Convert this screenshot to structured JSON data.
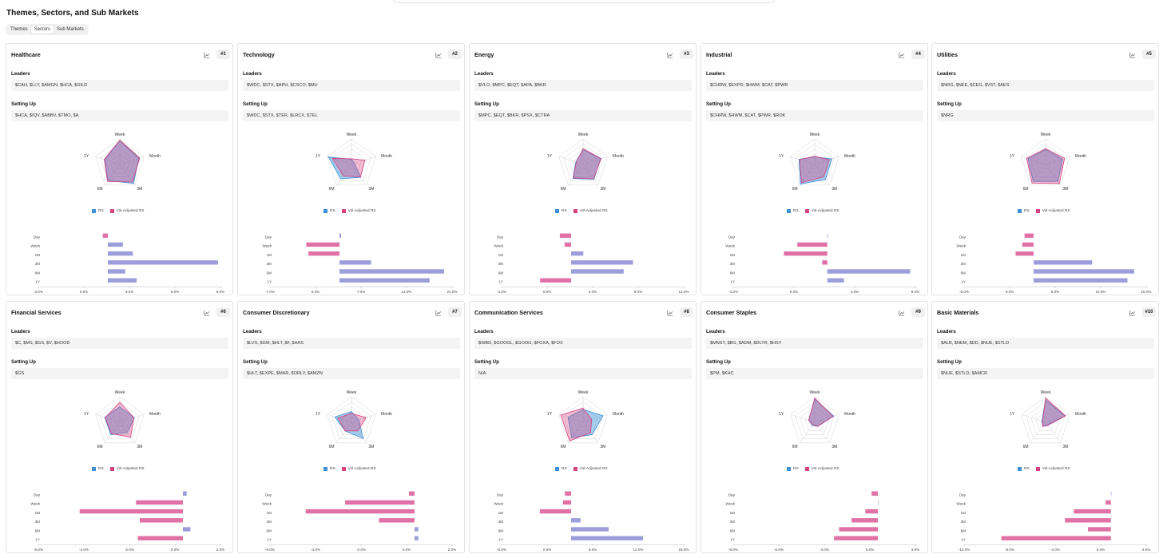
{
  "page": {
    "title": "Themes, Sectors, and Sub Markets"
  },
  "tabs": [
    {
      "label": "Themes",
      "active": false
    },
    {
      "label": "Sectors",
      "active": true
    },
    {
      "label": "Sub Markets",
      "active": false
    }
  ],
  "labels": {
    "leaders": "Leaders",
    "setting_up": "Setting Up"
  },
  "legend": {
    "rs": "RS",
    "vol_rs": "Vol-Adjusted RS"
  },
  "colors": {
    "rs": "#3a8fd6",
    "vol_rs": "#d6407f",
    "bar_pos": "#9d9ddb",
    "bar_neg": "#e071a6"
  },
  "radar_axes": [
    "Week",
    "Month",
    "3M",
    "6M",
    "1Y"
  ],
  "bar_categories": [
    "Day",
    "Week",
    "1M",
    "3M",
    "6M",
    "1Y"
  ],
  "sectors": [
    {
      "name": "Healthcare",
      "rank": "#1",
      "leaders": "$CAH, $LLY, $AMGN, $HCA, $GILD",
      "setting_up": "$HCA, $IQV, $ABBV, $TMO, $A",
      "radar": {
        "rs": [
          0.93,
          0.78,
          0.92,
          0.78,
          0.62
        ],
        "vol": [
          0.95,
          0.82,
          0.85,
          0.82,
          0.64
        ]
      },
      "bars": {
        "values": [
          -0.4,
          1.2,
          2.0,
          8.8,
          1.4,
          2.3
        ],
        "ticks": [
          "-3.0%",
          "0.0%",
          "3.0%",
          "6.0%",
          "9.0%"
        ],
        "xlim": [
          -3,
          9
        ]
      }
    },
    {
      "name": "Technology",
      "rank": "#2",
      "leaders": "$WDC, $STX, $APH, $CSCO, $MU",
      "setting_up": "$WDC, $STX, $TER, $LRCX, $TEL",
      "radar": {
        "rs": [
          0.2,
          0.12,
          0.62,
          0.7,
          0.95
        ],
        "vol": [
          0.22,
          0.55,
          0.6,
          0.55,
          0.78
        ]
      },
      "bars": {
        "values": [
          0.3,
          -6.2,
          -5.8,
          5.9,
          19.5,
          16.8
        ],
        "ticks": [
          "-7.0%",
          "0.0%",
          "7.0%",
          "14.0%",
          "21.0%"
        ],
        "xlim": [
          -7,
          21
        ]
      }
    },
    {
      "name": "Energy",
      "rank": "#3",
      "leaders": "$VLO, $MPC, $EQT, $APA, $BKR",
      "setting_up": "$MPC, $EQT, $BKR, $PSX, $CTRA",
      "radar": {
        "rs": [
          0.58,
          0.72,
          0.72,
          0.68,
          0.3
        ],
        "vol": [
          0.62,
          0.74,
          0.7,
          0.65,
          0.28
        ]
      },
      "bars": {
        "values": [
          -1.2,
          -0.7,
          1.3,
          6.6,
          5.6,
          -3.3
        ],
        "ticks": [
          "-4.0%",
          "0.0%",
          "4.0%",
          "8.0%",
          "12.0%"
        ],
        "xlim": [
          -4,
          12
        ]
      }
    },
    {
      "name": "Industrial",
      "rank": "#4",
      "leaders": "$CHRW, $EXPD, $HWM, $CAT, $PWR",
      "setting_up": "$CHRW, $HWM, $CAT, $PWR, $ROK",
      "radar": {
        "rs": [
          0.3,
          0.7,
          0.72,
          0.95,
          0.65
        ],
        "vol": [
          0.32,
          0.6,
          0.6,
          0.88,
          0.62
        ]
      },
      "bars": {
        "values": [
          0.0,
          -2.9,
          -4.2,
          -0.5,
          8.0,
          1.6
        ],
        "ticks": [
          "-4.0%",
          "0.0%",
          "4.0%",
          "8.0%"
        ],
        "xlim": [
          -6,
          8.5
        ]
      }
    },
    {
      "name": "Utilities",
      "rank": "#5",
      "leaders": "$NRG, $NEE, $CEG, $VST, $AES",
      "setting_up": "$NRG",
      "radar": {
        "rs": [
          0.58,
          0.7,
          0.82,
          0.82,
          0.72
        ],
        "vol": [
          0.62,
          0.78,
          0.92,
          0.9,
          0.78
        ]
      },
      "bars": {
        "values": [
          -1.2,
          -1.5,
          -2.4,
          7.8,
          13.4,
          12.5
        ],
        "ticks": [
          "-5.0%",
          "0.0%",
          "5.0%",
          "10.0%",
          "15.0%"
        ],
        "xlim": [
          -5,
          15
        ]
      }
    },
    {
      "name": "Financial Services",
      "rank": "#6",
      "leaders": "$C, $MS, $GS, $V, $HOOD",
      "setting_up": "$GS",
      "radar": {
        "rs": [
          0.6,
          0.6,
          0.5,
          0.6,
          0.62
        ],
        "vol": [
          0.78,
          0.58,
          0.72,
          0.55,
          0.6
        ]
      },
      "bars": {
        "values": [
          0.2,
          -2.5,
          -5.5,
          -2.3,
          0.4,
          -2.4
        ],
        "ticks": [
          "-6.0%",
          "-4.0%",
          "-2.0%",
          "0.0%",
          "2.0%"
        ],
        "xlim": [
          -6,
          2
        ]
      }
    },
    {
      "name": "Consumer Discretionary",
      "rank": "#7",
      "leaders": "$LVS, $GM, $HLT, $F, $HAS",
      "setting_up": "$HLT, $EXPE, $MAR, $ORLY, $AMZN",
      "radar": {
        "rs": [
          0.42,
          0.3,
          0.78,
          0.42,
          0.68
        ],
        "vol": [
          0.35,
          0.6,
          0.42,
          0.42,
          0.55
        ]
      },
      "bars": {
        "values": [
          -0.3,
          -3.7,
          -5.8,
          -1.9,
          0.2,
          0.2
        ],
        "ticks": [
          "-6.0%",
          "-4.0%",
          "-2.0%",
          "0.0%",
          "2.0%"
        ],
        "xlim": [
          -6,
          2
        ]
      }
    },
    {
      "name": "Communication Services",
      "rank": "#8",
      "leaders": "$WBD, $GOOGL, $GOOG, $FOXA, $FOX",
      "setting_up": "N/A",
      "radar": {
        "rs": [
          0.5,
          0.82,
          0.6,
          0.75,
          0.62
        ],
        "vol": [
          0.55,
          0.35,
          0.5,
          0.9,
          0.92
        ]
      },
      "bars": {
        "values": [
          -1.0,
          -1.3,
          -5.0,
          1.5,
          6.0,
          11.5
        ],
        "ticks": [
          "-6.0%",
          "0.0%",
          "6.0%",
          "12.0%",
          "18.0%"
        ],
        "xlim": [
          -6,
          18
        ]
      }
    },
    {
      "name": "Consumer Staples",
      "rank": "#9",
      "leaders": "$MNST, $BG, $ADM, $DLTR, $HSY",
      "setting_up": "$PM, $KHC",
      "radar": {
        "rs": [
          0.92,
          0.78,
          0.2,
          0.15,
          0.25
        ],
        "vol": [
          0.95,
          0.75,
          0.2,
          0.12,
          0.25
        ]
      },
      "bars": {
        "values": [
          -0.5,
          0.0,
          -1.0,
          -2.1,
          -3.1,
          -3.5
        ],
        "ticks": [
          "-9.0%",
          "-6.0%",
          "-3.0%",
          "0.0%",
          "3.0%"
        ],
        "xlim": [
          -9,
          3
        ]
      }
    },
    {
      "name": "Basic Materials",
      "rank": "#10",
      "leaders": "$ALB, $NEM, $DD, $NUE, $STLD",
      "setting_up": "$NUE, $STLD, $AMCR",
      "radar": {
        "rs": [
          0.88,
          0.8,
          0.12,
          0.18,
          0.15
        ],
        "vol": [
          0.95,
          0.82,
          0.15,
          0.2,
          0.12
        ]
      },
      "bars": {
        "values": [
          0.0,
          -0.3,
          -2.1,
          -2.6,
          -1.3,
          -6.2
        ],
        "ticks": [
          "-12.0%",
          "-8.0%",
          "-4.0%",
          "0.0%",
          "4.0%"
        ],
        "xlim": [
          -6.5,
          2
        ]
      }
    }
  ],
  "chart_data": [
    {
      "type": "bar",
      "title": "Healthcare",
      "categories": [
        "Day",
        "Week",
        "1M",
        "3M",
        "6M",
        "1Y"
      ],
      "values": [
        -0.4,
        1.2,
        2.0,
        8.8,
        1.4,
        2.3
      ]
    },
    {
      "type": "bar",
      "title": "Technology",
      "categories": [
        "Day",
        "Week",
        "1M",
        "3M",
        "6M",
        "1Y"
      ],
      "values": [
        0.3,
        -6.2,
        -5.8,
        5.9,
        19.5,
        16.8
      ]
    },
    {
      "type": "bar",
      "title": "Energy",
      "categories": [
        "Day",
        "Week",
        "1M",
        "3M",
        "6M",
        "1Y"
      ],
      "values": [
        -1.2,
        -0.7,
        1.3,
        6.6,
        5.6,
        -3.3
      ]
    },
    {
      "type": "bar",
      "title": "Industrial",
      "categories": [
        "Day",
        "Week",
        "1M",
        "3M",
        "6M",
        "1Y"
      ],
      "values": [
        0.0,
        -2.9,
        -4.2,
        -0.5,
        8.0,
        1.6
      ]
    },
    {
      "type": "bar",
      "title": "Utilities",
      "categories": [
        "Day",
        "Week",
        "1M",
        "3M",
        "6M",
        "1Y"
      ],
      "values": [
        -1.2,
        -1.5,
        -2.4,
        7.8,
        13.4,
        12.5
      ]
    },
    {
      "type": "bar",
      "title": "Financial Services",
      "categories": [
        "Day",
        "Week",
        "1M",
        "3M",
        "6M",
        "1Y"
      ],
      "values": [
        0.2,
        -2.5,
        -5.5,
        -2.3,
        0.4,
        -2.4
      ]
    },
    {
      "type": "bar",
      "title": "Consumer Discretionary",
      "categories": [
        "Day",
        "Week",
        "1M",
        "3M",
        "6M",
        "1Y"
      ],
      "values": [
        -0.3,
        -3.7,
        -5.8,
        -1.9,
        0.2,
        0.2
      ]
    },
    {
      "type": "bar",
      "title": "Communication Services",
      "categories": [
        "Day",
        "Week",
        "1M",
        "3M",
        "6M",
        "1Y"
      ],
      "values": [
        -1.0,
        -1.3,
        -5.0,
        1.5,
        6.0,
        11.5
      ]
    },
    {
      "type": "bar",
      "title": "Consumer Staples",
      "categories": [
        "Day",
        "Week",
        "1M",
        "3M",
        "6M",
        "1Y"
      ],
      "values": [
        -0.5,
        0.0,
        -1.0,
        -2.1,
        -3.1,
        -3.5
      ]
    },
    {
      "type": "bar",
      "title": "Basic Materials",
      "categories": [
        "Day",
        "Week",
        "1M",
        "3M",
        "6M",
        "1Y"
      ],
      "values": [
        0.0,
        -0.3,
        -2.1,
        -2.6,
        -1.3,
        -6.2
      ]
    }
  ]
}
